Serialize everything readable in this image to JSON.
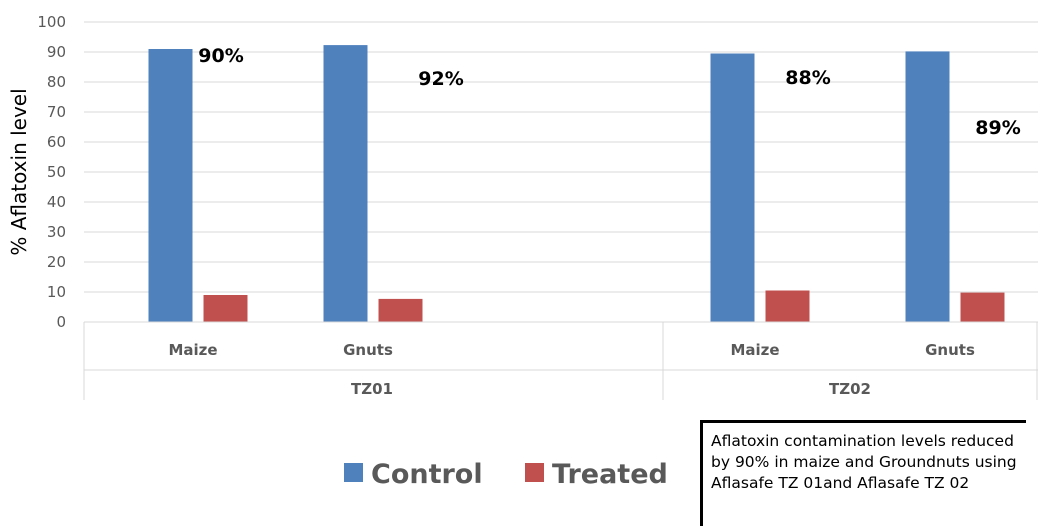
{
  "chart_data": {
    "type": "bar",
    "ylabel": "% Aflatoxin level",
    "ylim": [
      0,
      100
    ],
    "yticks": [
      0,
      10,
      20,
      30,
      40,
      50,
      60,
      70,
      80,
      90,
      100
    ],
    "groups": [
      {
        "label": "TZ01",
        "categories": [
          "Maize",
          "Gnuts"
        ]
      },
      {
        "label": "TZ02",
        "categories": [
          "Maize",
          "Gnuts"
        ]
      }
    ],
    "categories": [
      "Maize",
      "Gnuts",
      "Maize",
      "Gnuts"
    ],
    "series": [
      {
        "name": "Control",
        "color": "#4f81bd",
        "values": [
          91,
          92.3,
          89.5,
          90.2
        ]
      },
      {
        "name": "Treated",
        "color": "#c0504d",
        "values": [
          9,
          7.7,
          10.5,
          9.8
        ]
      }
    ],
    "data_labels": [
      "90%",
      "92%",
      "88%",
      "89%"
    ],
    "grid": true,
    "legend_position": "bottom"
  },
  "annotation": {
    "text": "Aflatoxin contamination levels reduced by 90% in maize and Groundnuts using Aflasafe TZ 01and Aflasafe TZ 02"
  }
}
